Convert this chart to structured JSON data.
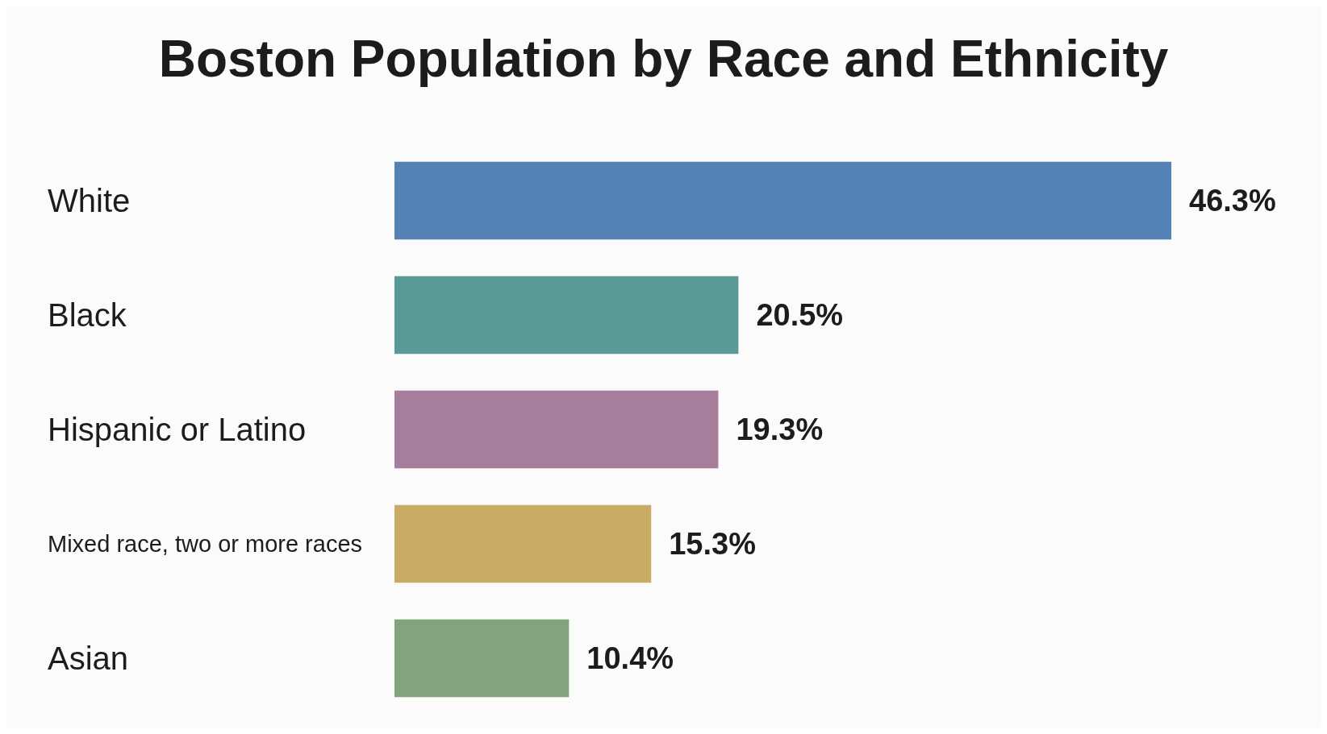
{
  "chart_data": {
    "type": "bar",
    "orientation": "horizontal",
    "title": "Boston Population by Race and Ethnicity",
    "categories": [
      "White",
      "Black",
      "Hispanic or Latino",
      "Mixed race, two or more races",
      "Asian"
    ],
    "values": [
      46.3,
      20.5,
      19.3,
      15.3,
      10.4
    ],
    "colors": [
      "#5582b4",
      "#5a9a96",
      "#a67d9a",
      "#c9ab66",
      "#82a37e"
    ],
    "value_labels": [
      "46.3%",
      "20.5%",
      "19.3%",
      "15.3%",
      "10.4%"
    ],
    "tick_labels": "y"
  }
}
